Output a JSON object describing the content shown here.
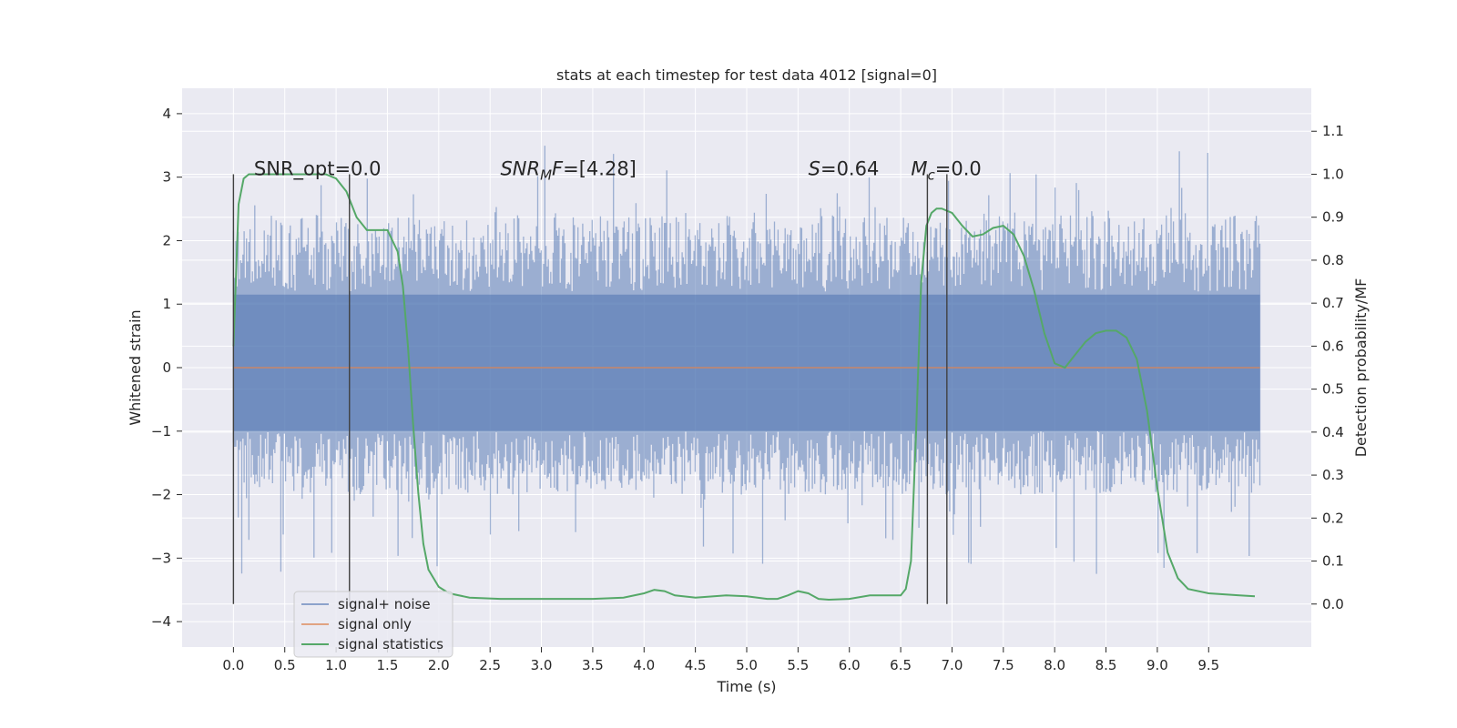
{
  "chart_data": {
    "type": "line",
    "title": "stats at each timestep for test data 4012 [signal=0]",
    "xlabel": "Time (s)",
    "ylabel": "Whitened strain",
    "y2label": "Detection probability/MF",
    "xlim": [
      -0.5,
      10.5
    ],
    "ylim": [
      -4.4,
      4.4
    ],
    "y2lim": [
      -0.1,
      1.2
    ],
    "xticks": [
      "0.0",
      "0.5",
      "1.0",
      "1.5",
      "2.0",
      "2.5",
      "3.0",
      "3.5",
      "4.0",
      "4.5",
      "5.0",
      "5.5",
      "6.0",
      "6.5",
      "7.0",
      "7.5",
      "8.0",
      "8.5",
      "9.0",
      "9.5"
    ],
    "yticks": [
      "4",
      "3",
      "2",
      "1",
      "0",
      "−1",
      "−2",
      "−3",
      "−4"
    ],
    "y2ticks": [
      "1.1",
      "1.0",
      "0.9",
      "0.8",
      "0.7",
      "0.6",
      "0.5",
      "0.4",
      "0.3",
      "0.2",
      "0.1",
      "0.0"
    ],
    "grid": true,
    "legend_position": "lower-left",
    "colors": {
      "background": "#eaeaf2",
      "grid": "#ffffff",
      "noise": "#4c72b0",
      "signal_only": "#dd8452",
      "statistics": "#55a868",
      "markers": "#404040"
    },
    "annotations": [
      {
        "name": "snr-opt",
        "text": "SNR_opt=0.0",
        "x": 0.2,
        "y2": 1.0
      },
      {
        "name": "snr-mf",
        "base": "SNR",
        "sub": "M",
        "tail": "F=[4.28]",
        "x": 2.6,
        "y2": 1.0
      },
      {
        "name": "s-value",
        "base": "S",
        "sub": "",
        "tail": "=0.64",
        "x": 5.6,
        "y2": 1.0
      },
      {
        "name": "mc-value",
        "base": "M",
        "sub": "c",
        "tail": "=0.0",
        "x": 6.6,
        "y2": 1.0
      }
    ],
    "vertical_markers": [
      {
        "x": 0.0,
        "y2": [
          0.0,
          1.0
        ]
      },
      {
        "x": 1.13,
        "y2": [
          0.0,
          1.0
        ]
      },
      {
        "x": 6.76,
        "y2": [
          0.0,
          1.0
        ]
      },
      {
        "x": 6.95,
        "y2": [
          0.0,
          1.0
        ]
      }
    ],
    "series": [
      {
        "name": "signal+ noise",
        "kind": "noise",
        "x_range": [
          0.0,
          10.0
        ],
        "band": [
          -1.0,
          1.15
        ],
        "typical_peak": [
          -2.0,
          2.4
        ],
        "extremes": [
          -3.6,
          3.85
        ]
      },
      {
        "name": "signal only",
        "kind": "line",
        "x": [
          0.0,
          10.0
        ],
        "y": [
          0.0,
          0.0
        ]
      },
      {
        "name": "signal statistics",
        "kind": "line",
        "axis": "y2",
        "x": [
          0.0,
          0.05,
          0.1,
          0.15,
          0.2,
          0.3,
          0.5,
          0.7,
          0.9,
          1.0,
          1.1,
          1.2,
          1.3,
          1.4,
          1.5,
          1.6,
          1.65,
          1.7,
          1.75,
          1.8,
          1.85,
          1.9,
          2.0,
          2.1,
          2.3,
          2.6,
          3.0,
          3.5,
          3.8,
          4.0,
          4.1,
          4.2,
          4.3,
          4.5,
          4.8,
          5.0,
          5.2,
          5.3,
          5.4,
          5.5,
          5.6,
          5.7,
          5.8,
          6.0,
          6.2,
          6.4,
          6.5,
          6.55,
          6.6,
          6.65,
          6.7,
          6.75,
          6.8,
          6.85,
          6.9,
          7.0,
          7.1,
          7.2,
          7.3,
          7.4,
          7.5,
          7.6,
          7.7,
          7.8,
          7.9,
          8.0,
          8.1,
          8.2,
          8.3,
          8.4,
          8.5,
          8.6,
          8.7,
          8.8,
          8.9,
          9.0,
          9.1,
          9.2,
          9.3,
          9.5,
          9.8,
          9.95
        ],
        "y": [
          0.6,
          0.93,
          0.99,
          1.0,
          1.0,
          1.0,
          1.0,
          1.0,
          1.0,
          0.99,
          0.96,
          0.9,
          0.87,
          0.87,
          0.87,
          0.82,
          0.74,
          0.6,
          0.42,
          0.26,
          0.14,
          0.08,
          0.04,
          0.025,
          0.015,
          0.012,
          0.012,
          0.012,
          0.015,
          0.025,
          0.033,
          0.03,
          0.02,
          0.015,
          0.02,
          0.018,
          0.012,
          0.012,
          0.02,
          0.03,
          0.025,
          0.012,
          0.01,
          0.012,
          0.02,
          0.02,
          0.02,
          0.035,
          0.1,
          0.4,
          0.75,
          0.88,
          0.91,
          0.92,
          0.92,
          0.91,
          0.88,
          0.855,
          0.86,
          0.875,
          0.88,
          0.86,
          0.81,
          0.73,
          0.63,
          0.56,
          0.55,
          0.58,
          0.61,
          0.63,
          0.636,
          0.636,
          0.62,
          0.57,
          0.45,
          0.27,
          0.12,
          0.06,
          0.035,
          0.025,
          0.02,
          0.018
        ]
      }
    ]
  }
}
